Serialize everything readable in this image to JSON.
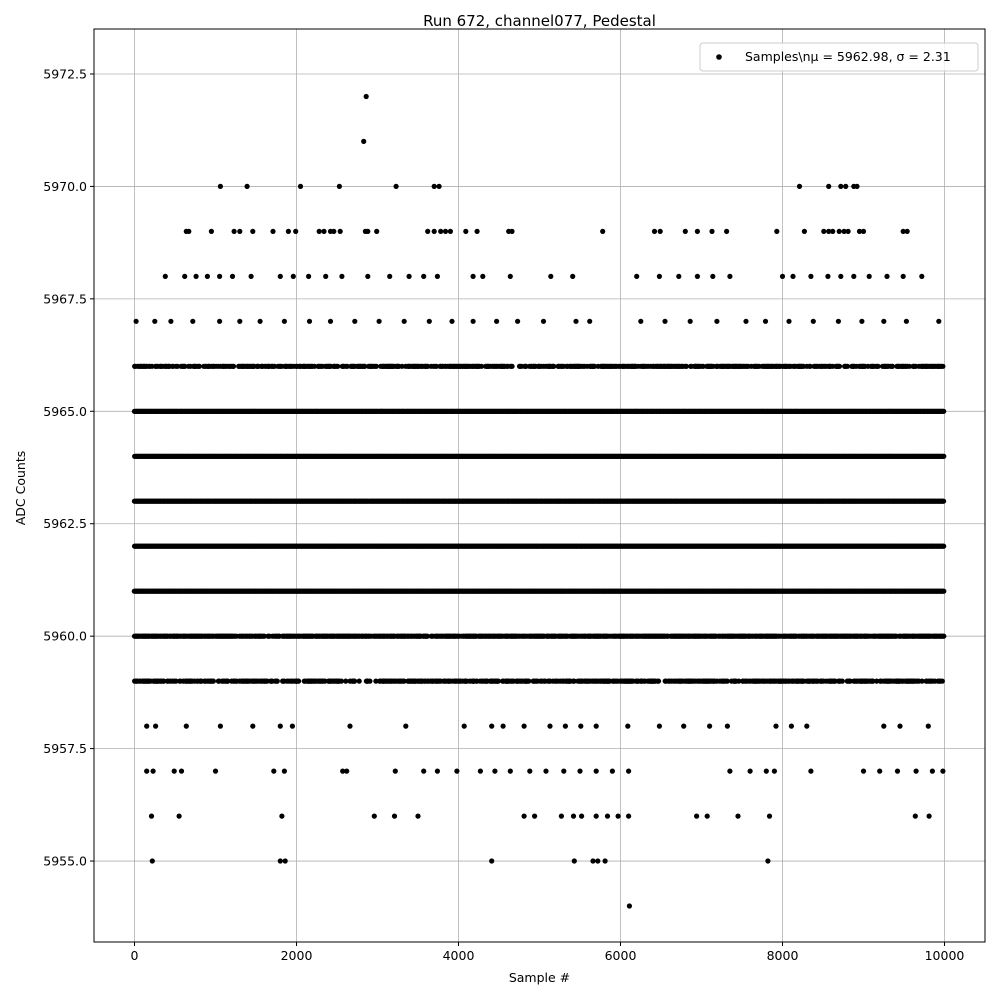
{
  "chart_data": {
    "type": "scatter",
    "title": "Run 672, channel077, Pedestal",
    "xlabel": "Sample #",
    "ylabel": "ADC Counts",
    "xlim": [
      -500,
      10500
    ],
    "ylim": [
      5953.2,
      5973.5
    ],
    "xticks": [
      0,
      2000,
      4000,
      6000,
      8000,
      10000
    ],
    "xtick_labels": [
      "0",
      "2000",
      "4000",
      "6000",
      "8000",
      "10000"
    ],
    "yticks": [
      5955.0,
      5957.5,
      5960.0,
      5962.5,
      5965.0,
      5967.5,
      5970.0,
      5972.5
    ],
    "ytick_labels": [
      "5955.0",
      "5957.5",
      "5960.0",
      "5962.5",
      "5965.0",
      "5967.5",
      "5970.0",
      "5972.5"
    ],
    "grid": true,
    "legend": {
      "position": "top-right",
      "label": "Samples\\nμ = 5962.98, σ = 2.31"
    },
    "marker_color": "#000000",
    "series": [
      {
        "name": "Samples\\nμ = 5962.98, σ = 2.31",
        "color": "#000000",
        "points": [
          [
            2860,
            5972
          ],
          [
            2830,
            5971
          ],
          [
            1060,
            5970
          ],
          [
            1390,
            5970
          ],
          [
            2050,
            5970
          ],
          [
            2530,
            5970
          ],
          [
            3230,
            5970
          ],
          [
            3700,
            5970
          ],
          [
            3760,
            5970
          ],
          [
            8210,
            5970
          ],
          [
            8570,
            5970
          ],
          [
            8720,
            5970
          ],
          [
            8780,
            5970
          ],
          [
            8880,
            5970
          ],
          [
            8920,
            5970
          ],
          [
            640,
            5969
          ],
          [
            670,
            5969
          ],
          [
            950,
            5969
          ],
          [
            1230,
            5969
          ],
          [
            1300,
            5969
          ],
          [
            1460,
            5969
          ],
          [
            1710,
            5969
          ],
          [
            1900,
            5969
          ],
          [
            1990,
            5969
          ],
          [
            2280,
            5969
          ],
          [
            2340,
            5969
          ],
          [
            2420,
            5969
          ],
          [
            2460,
            5969
          ],
          [
            2540,
            5969
          ],
          [
            2850,
            5969
          ],
          [
            2880,
            5969
          ],
          [
            2990,
            5969
          ],
          [
            3620,
            5969
          ],
          [
            3700,
            5969
          ],
          [
            3780,
            5969
          ],
          [
            3840,
            5969
          ],
          [
            3900,
            5969
          ],
          [
            4090,
            5969
          ],
          [
            4230,
            5969
          ],
          [
            4620,
            5969
          ],
          [
            4660,
            5969
          ],
          [
            5780,
            5969
          ],
          [
            6420,
            5969
          ],
          [
            6490,
            5969
          ],
          [
            6800,
            5969
          ],
          [
            6950,
            5969
          ],
          [
            7130,
            5969
          ],
          [
            7310,
            5969
          ],
          [
            7930,
            5969
          ],
          [
            8270,
            5969
          ],
          [
            8510,
            5969
          ],
          [
            8570,
            5969
          ],
          [
            8620,
            5969
          ],
          [
            8700,
            5969
          ],
          [
            8760,
            5969
          ],
          [
            8810,
            5969
          ],
          [
            8950,
            5969
          ],
          [
            9000,
            5969
          ],
          [
            9490,
            5969
          ],
          [
            9540,
            5969
          ],
          [
            380,
            5968
          ],
          [
            620,
            5968
          ],
          [
            760,
            5968
          ],
          [
            900,
            5968
          ],
          [
            1050,
            5968
          ],
          [
            1210,
            5968
          ],
          [
            1440,
            5968
          ],
          [
            1800,
            5968
          ],
          [
            1960,
            5968
          ],
          [
            2150,
            5968
          ],
          [
            2360,
            5968
          ],
          [
            2560,
            5968
          ],
          [
            2880,
            5968
          ],
          [
            3150,
            5968
          ],
          [
            3390,
            5968
          ],
          [
            3570,
            5968
          ],
          [
            3740,
            5968
          ],
          [
            4180,
            5968
          ],
          [
            4300,
            5968
          ],
          [
            4640,
            5968
          ],
          [
            5140,
            5968
          ],
          [
            5410,
            5968
          ],
          [
            6200,
            5968
          ],
          [
            6480,
            5968
          ],
          [
            6720,
            5968
          ],
          [
            6950,
            5968
          ],
          [
            7140,
            5968
          ],
          [
            7350,
            5968
          ],
          [
            8000,
            5968
          ],
          [
            8130,
            5968
          ],
          [
            8350,
            5968
          ],
          [
            8560,
            5968
          ],
          [
            8720,
            5968
          ],
          [
            8880,
            5968
          ],
          [
            9070,
            5968
          ],
          [
            9290,
            5968
          ],
          [
            9490,
            5968
          ],
          [
            9720,
            5968
          ],
          [
            20,
            5967
          ],
          [
            250,
            5967
          ],
          [
            450,
            5967
          ],
          [
            720,
            5967
          ],
          [
            1050,
            5967
          ],
          [
            1300,
            5967
          ],
          [
            1550,
            5967
          ],
          [
            1850,
            5967
          ],
          [
            2160,
            5967
          ],
          [
            2420,
            5967
          ],
          [
            2720,
            5967
          ],
          [
            3020,
            5967
          ],
          [
            3330,
            5967
          ],
          [
            3640,
            5967
          ],
          [
            3920,
            5967
          ],
          [
            4180,
            5967
          ],
          [
            4470,
            5967
          ],
          [
            4730,
            5967
          ],
          [
            5050,
            5967
          ],
          [
            5450,
            5967
          ],
          [
            5620,
            5967
          ],
          [
            6250,
            5967
          ],
          [
            6550,
            5967
          ],
          [
            6860,
            5967
          ],
          [
            7190,
            5967
          ],
          [
            7550,
            5967
          ],
          [
            7790,
            5967
          ],
          [
            8080,
            5967
          ],
          [
            8380,
            5967
          ],
          [
            8690,
            5967
          ],
          [
            8980,
            5967
          ],
          [
            9250,
            5967
          ],
          [
            9530,
            5967
          ],
          [
            9930,
            5967
          ],
          [
            150,
            5958
          ],
          [
            260,
            5958
          ],
          [
            640,
            5958
          ],
          [
            1060,
            5958
          ],
          [
            1460,
            5958
          ],
          [
            1800,
            5958
          ],
          [
            1950,
            5958
          ],
          [
            2660,
            5958
          ],
          [
            3350,
            5958
          ],
          [
            4070,
            5958
          ],
          [
            4410,
            5958
          ],
          [
            4550,
            5958
          ],
          [
            4810,
            5958
          ],
          [
            5130,
            5958
          ],
          [
            5320,
            5958
          ],
          [
            5510,
            5958
          ],
          [
            5700,
            5958
          ],
          [
            6090,
            5958
          ],
          [
            6480,
            5958
          ],
          [
            6780,
            5958
          ],
          [
            7100,
            5958
          ],
          [
            7320,
            5958
          ],
          [
            7920,
            5958
          ],
          [
            8110,
            5958
          ],
          [
            8300,
            5958
          ],
          [
            9250,
            5958
          ],
          [
            9450,
            5958
          ],
          [
            9800,
            5958
          ],
          [
            150,
            5957
          ],
          [
            230,
            5957
          ],
          [
            490,
            5957
          ],
          [
            580,
            5957
          ],
          [
            1000,
            5957
          ],
          [
            1720,
            5957
          ],
          [
            1850,
            5957
          ],
          [
            2570,
            5957
          ],
          [
            2620,
            5957
          ],
          [
            3220,
            5957
          ],
          [
            3570,
            5957
          ],
          [
            3740,
            5957
          ],
          [
            3980,
            5957
          ],
          [
            4270,
            5957
          ],
          [
            4450,
            5957
          ],
          [
            4640,
            5957
          ],
          [
            4880,
            5957
          ],
          [
            5080,
            5957
          ],
          [
            5300,
            5957
          ],
          [
            5500,
            5957
          ],
          [
            5700,
            5957
          ],
          [
            5900,
            5957
          ],
          [
            6100,
            5957
          ],
          [
            7350,
            5957
          ],
          [
            7600,
            5957
          ],
          [
            7800,
            5957
          ],
          [
            7900,
            5957
          ],
          [
            8350,
            5957
          ],
          [
            9000,
            5957
          ],
          [
            9200,
            5957
          ],
          [
            9420,
            5957
          ],
          [
            9650,
            5957
          ],
          [
            9850,
            5957
          ],
          [
            9980,
            5957
          ],
          [
            210,
            5956
          ],
          [
            550,
            5956
          ],
          [
            1820,
            5956
          ],
          [
            2960,
            5956
          ],
          [
            3210,
            5956
          ],
          [
            3500,
            5956
          ],
          [
            4810,
            5956
          ],
          [
            4940,
            5956
          ],
          [
            5270,
            5956
          ],
          [
            5420,
            5956
          ],
          [
            5520,
            5956
          ],
          [
            5700,
            5956
          ],
          [
            5840,
            5956
          ],
          [
            5970,
            5956
          ],
          [
            6100,
            5956
          ],
          [
            6940,
            5956
          ],
          [
            7070,
            5956
          ],
          [
            7450,
            5956
          ],
          [
            7840,
            5956
          ],
          [
            9640,
            5956
          ],
          [
            9810,
            5956
          ],
          [
            220,
            5955
          ],
          [
            1800,
            5955
          ],
          [
            1860,
            5955
          ],
          [
            4410,
            5955
          ],
          [
            5430,
            5955
          ],
          [
            5660,
            5955
          ],
          [
            5720,
            5955
          ],
          [
            5810,
            5955
          ],
          [
            7820,
            5955
          ],
          [
            6110,
            5954
          ]
        ],
        "dense_rows": [
          {
            "y": 5966,
            "x_range": [
              0,
              9990
            ]
          },
          {
            "y": 5965,
            "x_range": [
              0,
              9990
            ]
          },
          {
            "y": 5964,
            "x_range": [
              0,
              9990
            ]
          },
          {
            "y": 5963,
            "x_range": [
              0,
              9990
            ]
          },
          {
            "y": 5962,
            "x_range": [
              0,
              9990
            ]
          },
          {
            "y": 5961,
            "x_range": [
              0,
              9990
            ]
          },
          {
            "y": 5960,
            "x_range": [
              0,
              9990
            ]
          },
          {
            "y": 5959,
            "x_range": [
              0,
              9990
            ]
          }
        ]
      }
    ]
  }
}
